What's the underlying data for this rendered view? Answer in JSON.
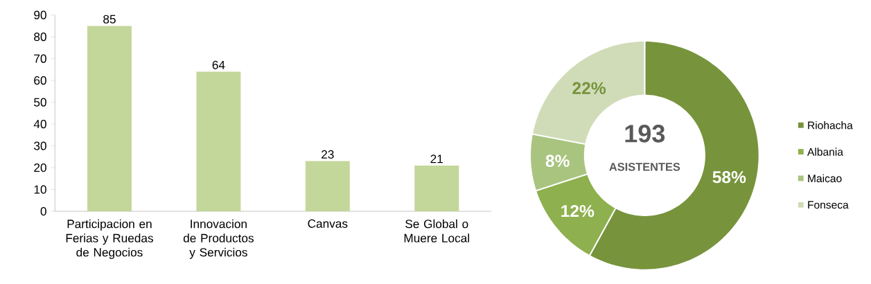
{
  "chart_data": [
    {
      "type": "bar",
      "categories": [
        "Participacion en Ferias y Ruedas de Negocios",
        "Innovacion de Productos y Servicios",
        "Canvas",
        "Se Global o Muere Local"
      ],
      "values": [
        85,
        64,
        23,
        21
      ],
      "color": "#c4d79b",
      "ylim": [
        0,
        90
      ],
      "yticks": [
        0,
        10,
        20,
        30,
        40,
        50,
        60,
        70,
        80,
        90
      ],
      "data_labels": true
    },
    {
      "type": "donut",
      "categories": [
        "Riohacha",
        "Albania",
        "Maicao",
        "Fonseca"
      ],
      "values": [
        58,
        12,
        8,
        22
      ],
      "colors": [
        "#77933c",
        "#8eb04e",
        "#a9c47f",
        "#d0dcb8"
      ],
      "value_labels": [
        "58%",
        "12%",
        "8%",
        "22%"
      ],
      "annotations": [
        "193",
        "ASISTENTES"
      ],
      "legend": "right"
    }
  ]
}
